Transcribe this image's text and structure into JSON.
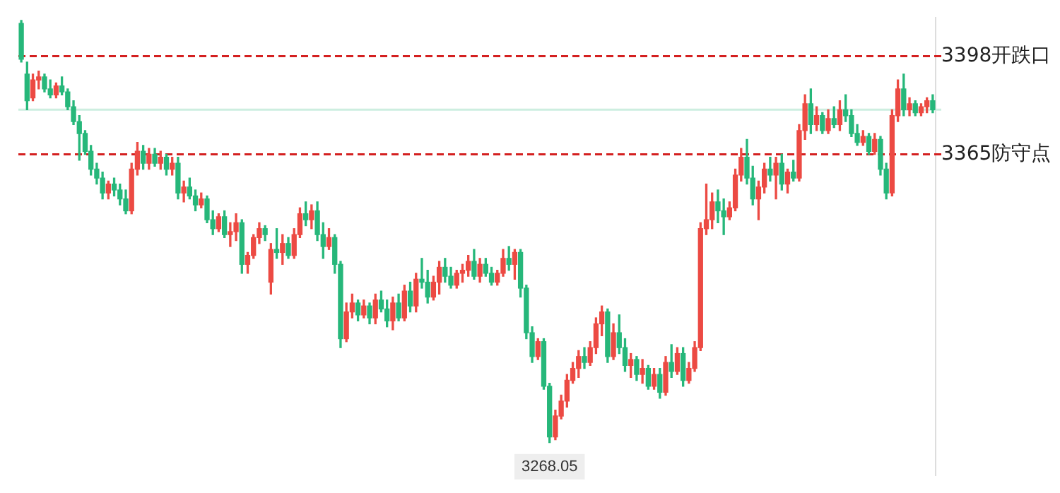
{
  "chart_data": {
    "type": "candlestick",
    "tick_labels": "y",
    "ylim": [
      3257,
      3411
    ],
    "yticks": [
      {
        "value": 3398,
        "label": "3398开跌口"
      },
      {
        "value": 3365,
        "label": "3365防守点"
      }
    ],
    "categories": [
      null,
      null,
      null,
      null,
      null,
      null,
      null,
      null,
      null,
      null,
      null,
      null,
      null,
      null,
      null,
      null,
      null,
      null,
      null,
      null,
      null,
      null,
      null,
      null,
      null,
      null,
      null,
      null,
      null,
      null,
      null,
      null,
      null,
      null,
      null,
      null,
      null,
      null,
      null,
      null,
      null,
      null,
      null,
      null,
      null,
      null,
      null,
      null,
      null,
      null,
      null,
      null,
      null,
      null,
      null,
      null,
      null,
      null,
      null,
      null,
      null,
      null,
      null,
      null,
      null,
      null,
      null,
      null,
      null,
      null,
      null,
      null,
      null,
      null,
      null,
      null,
      null,
      null,
      null,
      null,
      null,
      null,
      null,
      null,
      null,
      null,
      null,
      null,
      null,
      null,
      null,
      null,
      null,
      null,
      null,
      null,
      null,
      null,
      null,
      null,
      null,
      null,
      null,
      null,
      null,
      null,
      null,
      null,
      null,
      null,
      null,
      null,
      null,
      null,
      null,
      null,
      null,
      null,
      null,
      null,
      null,
      null,
      null,
      null,
      null,
      null,
      null,
      null,
      null,
      null,
      null,
      null,
      null,
      null,
      null,
      null,
      null,
      null,
      null,
      null,
      null,
      null,
      null,
      null,
      null,
      null,
      null,
      null,
      null,
      null,
      null,
      null,
      null,
      null,
      null,
      null,
      null,
      null
    ],
    "ohlc": [
      [
        3409,
        3410,
        3396,
        3397
      ],
      [
        3392,
        3396,
        3380,
        3383
      ],
      [
        3384,
        3392,
        3383,
        3390
      ],
      [
        3390,
        3393,
        3387,
        3391
      ],
      [
        3391,
        3392,
        3386,
        3387
      ],
      [
        3387,
        3390,
        3384,
        3385
      ],
      [
        3385,
        3389,
        3384,
        3388
      ],
      [
        3388,
        3391,
        3385,
        3386
      ],
      [
        3386,
        3387,
        3380,
        3381
      ],
      [
        3381,
        3383,
        3375,
        3376
      ],
      [
        3376,
        3378,
        3363,
        3372
      ],
      [
        3372,
        3373,
        3365,
        3366
      ],
      [
        3366,
        3368,
        3358,
        3360
      ],
      [
        3360,
        3362,
        3355,
        3357
      ],
      [
        3357,
        3359,
        3350,
        3352
      ],
      [
        3352,
        3356,
        3350,
        3355
      ],
      [
        3355,
        3357,
        3351,
        3353
      ],
      [
        3353,
        3355,
        3348,
        3350
      ],
      [
        3350,
        3353,
        3345,
        3346
      ],
      [
        3346,
        3362,
        3345,
        3360
      ],
      [
        3360,
        3369,
        3358,
        3366
      ],
      [
        3366,
        3368,
        3360,
        3362
      ],
      [
        3362,
        3367,
        3360,
        3365
      ],
      [
        3365,
        3367,
        3361,
        3362
      ],
      [
        3362,
        3366,
        3360,
        3364
      ],
      [
        3364,
        3365,
        3358,
        3360
      ],
      [
        3360,
        3364,
        3358,
        3362
      ],
      [
        3362,
        3364,
        3350,
        3352
      ],
      [
        3352,
        3356,
        3349,
        3354
      ],
      [
        3354,
        3357,
        3350,
        3351
      ],
      [
        3351,
        3353,
        3346,
        3348
      ],
      [
        3348,
        3352,
        3347,
        3350
      ],
      [
        3350,
        3351,
        3342,
        3343
      ],
      [
        3343,
        3346,
        3338,
        3340
      ],
      [
        3340,
        3345,
        3339,
        3344
      ],
      [
        3344,
        3346,
        3337,
        3338
      ],
      [
        3338,
        3342,
        3334,
        3339
      ],
      [
        3339,
        3345,
        3336,
        3342
      ],
      [
        3342,
        3343,
        3325,
        3328
      ],
      [
        3328,
        3332,
        3325,
        3331
      ],
      [
        3331,
        3338,
        3330,
        3337
      ],
      [
        3337,
        3342,
        3335,
        3340
      ],
      [
        3340,
        3341,
        3336,
        3338
      ],
      [
        3322,
        3335,
        3318,
        3333
      ],
      [
        3333,
        3340,
        3330,
        3332
      ],
      [
        3332,
        3338,
        3328,
        3335
      ],
      [
        3335,
        3337,
        3330,
        3331
      ],
      [
        3331,
        3340,
        3330,
        3338
      ],
      [
        3338,
        3347,
        3337,
        3345
      ],
      [
        3345,
        3349,
        3341,
        3343
      ],
      [
        3343,
        3348,
        3340,
        3346
      ],
      [
        3346,
        3349,
        3336,
        3338
      ],
      [
        3338,
        3342,
        3330,
        3334
      ],
      [
        3334,
        3340,
        3333,
        3337
      ],
      [
        3337,
        3338,
        3325,
        3328
      ],
      [
        3328,
        3329,
        3300,
        3303
      ],
      [
        3303,
        3315,
        3302,
        3312
      ],
      [
        3312,
        3318,
        3310,
        3315
      ],
      [
        3315,
        3316,
        3309,
        3311
      ],
      [
        3311,
        3316,
        3310,
        3314
      ],
      [
        3314,
        3315,
        3308,
        3310
      ],
      [
        3310,
        3318,
        3308,
        3316
      ],
      [
        3316,
        3319,
        3312,
        3313
      ],
      [
        3313,
        3316,
        3307,
        3309
      ],
      [
        3309,
        3317,
        3306,
        3315
      ],
      [
        3315,
        3318,
        3309,
        3310
      ],
      [
        3310,
        3321,
        3309,
        3319
      ],
      [
        3319,
        3322,
        3312,
        3314
      ],
      [
        3314,
        3325,
        3312,
        3323
      ],
      [
        3323,
        3330,
        3320,
        3322
      ],
      [
        3322,
        3326,
        3315,
        3317
      ],
      [
        3317,
        3324,
        3316,
        3322
      ],
      [
        3322,
        3329,
        3318,
        3327
      ],
      [
        3327,
        3330,
        3322,
        3324
      ],
      [
        3324,
        3327,
        3320,
        3321
      ],
      [
        3321,
        3326,
        3320,
        3325
      ],
      [
        3325,
        3328,
        3322,
        3326
      ],
      [
        3326,
        3331,
        3324,
        3329
      ],
      [
        3329,
        3333,
        3323,
        3324
      ],
      [
        3324,
        3330,
        3322,
        3328
      ],
      [
        3328,
        3330,
        3324,
        3325
      ],
      [
        3325,
        3327,
        3321,
        3322
      ],
      [
        3322,
        3326,
        3321,
        3325
      ],
      [
        3325,
        3333,
        3324,
        3330
      ],
      [
        3330,
        3334,
        3326,
        3328
      ],
      [
        3328,
        3333,
        3323,
        3332
      ],
      [
        3332,
        3333,
        3317,
        3320
      ],
      [
        3320,
        3321,
        3303,
        3305
      ],
      [
        3305,
        3307,
        3295,
        3297
      ],
      [
        3297,
        3303,
        3296,
        3302
      ],
      [
        3302,
        3303,
        3286,
        3287
      ],
      [
        3287,
        3288,
        3268.05,
        3270
      ],
      [
        3270,
        3279,
        3269,
        3277
      ],
      [
        3277,
        3284,
        3276,
        3282
      ],
      [
        3282,
        3291,
        3280,
        3289
      ],
      [
        3289,
        3295,
        3288,
        3293
      ],
      [
        3293,
        3299,
        3290,
        3297
      ],
      [
        3297,
        3300,
        3293,
        3295
      ],
      [
        3295,
        3302,
        3294,
        3300
      ],
      [
        3300,
        3310,
        3298,
        3308
      ],
      [
        3308,
        3314,
        3304,
        3312
      ],
      [
        3312,
        3313,
        3295,
        3297
      ],
      [
        3297,
        3308,
        3296,
        3305
      ],
      [
        3305,
        3311,
        3298,
        3300
      ],
      [
        3300,
        3303,
        3292,
        3294
      ],
      [
        3294,
        3298,
        3290,
        3296
      ],
      [
        3296,
        3297,
        3289,
        3291
      ],
      [
        3291,
        3296,
        3288,
        3293
      ],
      [
        3293,
        3294,
        3286,
        3287
      ],
      [
        3287,
        3293,
        3286,
        3291
      ],
      [
        3291,
        3293,
        3283,
        3285
      ],
      [
        3285,
        3297,
        3284,
        3295
      ],
      [
        3295,
        3301,
        3290,
        3292
      ],
      [
        3292,
        3300,
        3291,
        3298
      ],
      [
        3298,
        3300,
        3287,
        3289
      ],
      [
        3289,
        3295,
        3288,
        3293
      ],
      [
        3293,
        3302,
        3292,
        3300
      ],
      [
        3300,
        3342,
        3299,
        3340
      ],
      [
        3340,
        3355,
        3338,
        3343
      ],
      [
        3343,
        3352,
        3340,
        3349
      ],
      [
        3349,
        3353,
        3342,
        3346
      ],
      [
        3346,
        3350,
        3338,
        3344
      ],
      [
        3344,
        3349,
        3343,
        3347
      ],
      [
        3347,
        3360,
        3346,
        3358
      ],
      [
        3358,
        3367,
        3356,
        3364
      ],
      [
        3364,
        3370,
        3355,
        3357
      ],
      [
        3357,
        3361,
        3348,
        3350
      ],
      [
        3350,
        3356,
        3343,
        3354
      ],
      [
        3354,
        3362,
        3352,
        3360
      ],
      [
        3360,
        3364,
        3356,
        3358
      ],
      [
        3358,
        3364,
        3350,
        3362
      ],
      [
        3362,
        3365,
        3353,
        3355
      ],
      [
        3355,
        3360,
        3352,
        3359
      ],
      [
        3359,
        3363,
        3356,
        3357
      ],
      [
        3357,
        3375,
        3356,
        3373
      ],
      [
        3373,
        3385,
        3370,
        3382
      ],
      [
        3382,
        3387,
        3372,
        3375
      ],
      [
        3375,
        3381,
        3373,
        3378
      ],
      [
        3378,
        3379,
        3372,
        3373
      ],
      [
        3373,
        3380,
        3372,
        3377
      ],
      [
        3377,
        3381,
        3374,
        3375
      ],
      [
        3375,
        3383,
        3373,
        3380
      ],
      [
        3380,
        3385,
        3376,
        3378
      ],
      [
        3378,
        3380,
        3371,
        3372
      ],
      [
        3372,
        3375,
        3368,
        3369
      ],
      [
        3369,
        3373,
        3368,
        3371
      ],
      [
        3371,
        3372,
        3365,
        3366
      ],
      [
        3366,
        3372,
        3365,
        3370
      ],
      [
        3370,
        3371,
        3358,
        3360
      ],
      [
        3360,
        3362,
        3350,
        3352
      ],
      [
        3352,
        3380,
        3351,
        3378
      ],
      [
        3378,
        3390,
        3376,
        3387
      ],
      [
        3387,
        3392,
        3378,
        3380
      ],
      [
        3380,
        3384,
        3378,
        3382
      ],
      [
        3382,
        3383,
        3378,
        3379
      ],
      [
        3379,
        3382,
        3378,
        3381
      ],
      [
        3381,
        3384,
        3379,
        3383
      ],
      [
        3383,
        3385,
        3379,
        3380
      ]
    ],
    "ref_lines": [
      {
        "axis": "y",
        "value": 3398,
        "color": "#d42020",
        "line_style": "dashed"
      },
      {
        "axis": "y",
        "value": 3365,
        "color": "#d42020",
        "line_style": "dashed"
      },
      {
        "axis": "y",
        "value": 3380,
        "label": null,
        "color": "#cdeee0",
        "line_style": "solid"
      }
    ],
    "annotations": [
      {
        "text": "3268.05",
        "y": 3268.05
      }
    ]
  }
}
